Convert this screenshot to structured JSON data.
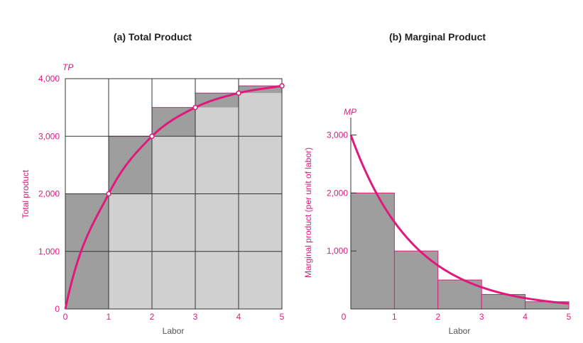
{
  "colors": {
    "accent": "#e0197c",
    "dark_fill": "#9e9e9e",
    "light_fill": "#d0d0d0",
    "grid": "#333333",
    "text": "#555555"
  },
  "chart_data": [
    {
      "id": "total",
      "type": "bar",
      "title": "(a) Total Product",
      "curve_label": "TP",
      "xlabel": "Labor",
      "ylabel": "Total product",
      "xlim": [
        0,
        5
      ],
      "ylim": [
        0,
        4000
      ],
      "grid": true,
      "x_ticks": [
        "0",
        "1",
        "2",
        "3",
        "4",
        "5"
      ],
      "y_ticks": [
        {
          "value": 0,
          "label": "0"
        },
        {
          "value": 1000,
          "label": "1,000"
        },
        {
          "value": 2000,
          "label": "2,000"
        },
        {
          "value": 3000,
          "label": "3,000"
        },
        {
          "value": 4000,
          "label": "4,000"
        }
      ],
      "points": [
        {
          "x": 0,
          "y": 0
        },
        {
          "x": 1,
          "y": 2000
        },
        {
          "x": 2,
          "y": 3000
        },
        {
          "x": 3,
          "y": 3500
        },
        {
          "x": 4,
          "y": 3750
        },
        {
          "x": 5,
          "y": 3875
        }
      ],
      "marked_points": [
        1,
        2,
        3,
        4,
        5
      ]
    },
    {
      "id": "marginal",
      "type": "bar",
      "title": "(b) Marginal Product",
      "curve_label": "MP",
      "xlabel": "Labor",
      "ylabel": "Marginal product (per unit of labor)",
      "xlim": [
        0,
        5
      ],
      "ylim": [
        0,
        3250
      ],
      "grid": false,
      "x_ticks": [
        "0",
        "1",
        "2",
        "3",
        "4",
        "5"
      ],
      "y_ticks": [
        {
          "value": 1000,
          "label": "1,000"
        },
        {
          "value": 2000,
          "label": "2,000"
        },
        {
          "value": 3000,
          "label": "3,000"
        }
      ],
      "zero_label": "0",
      "bars": [
        {
          "x0": 0,
          "x1": 1,
          "value": 2000
        },
        {
          "x0": 1,
          "x1": 2,
          "value": 1000
        },
        {
          "x0": 2,
          "x1": 3,
          "value": 500
        },
        {
          "x0": 3,
          "x1": 4,
          "value": 250
        },
        {
          "x0": 4,
          "x1": 5,
          "value": 125
        }
      ],
      "curve": {
        "start_value": 3000,
        "decay_per_unit": 0.5
      }
    }
  ]
}
